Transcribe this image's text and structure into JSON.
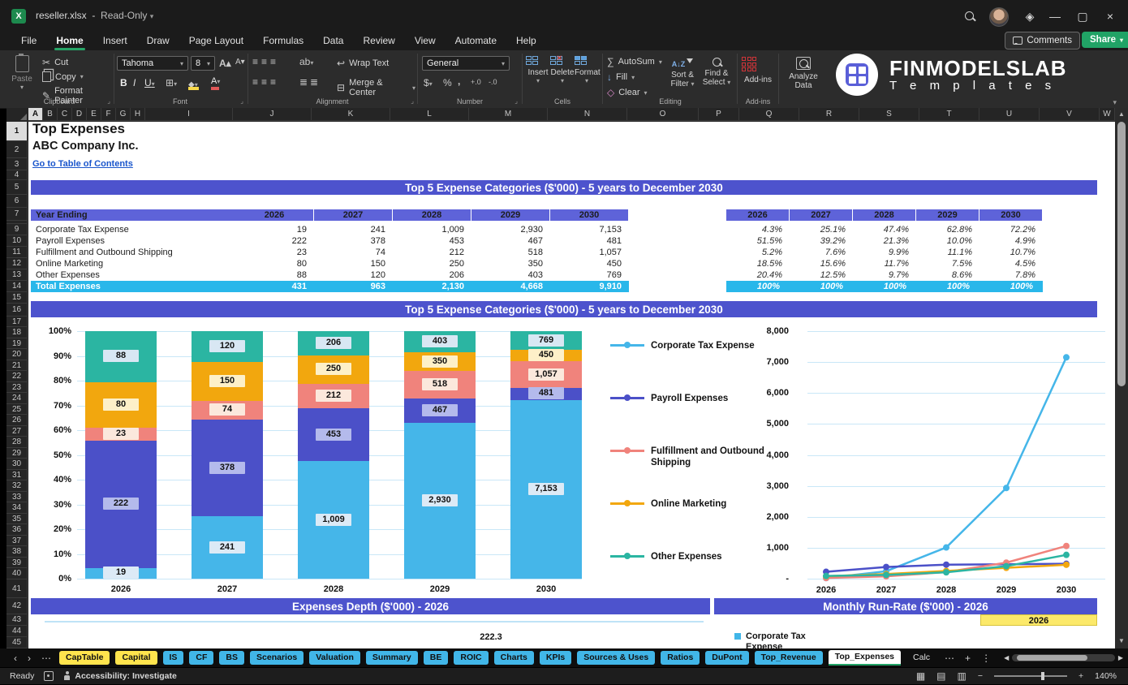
{
  "window": {
    "filename": "reseller.xlsx",
    "mode": "Read-Only",
    "comments_label": "Comments",
    "share_label": "Share"
  },
  "menu": {
    "items": [
      "File",
      "Home",
      "Insert",
      "Draw",
      "Page Layout",
      "Formulas",
      "Data",
      "Review",
      "View",
      "Automate",
      "Help"
    ],
    "active": "Home"
  },
  "ribbon": {
    "paste": "Paste",
    "cut": "Cut",
    "copy": "Copy",
    "format_painter": "Format Painter",
    "font_name": "Tahoma",
    "font_size": "8",
    "wrap_text": "Wrap Text",
    "merge_center": "Merge & Center",
    "number_format": "General",
    "insert": "Insert",
    "delete": "Delete",
    "format": "Format",
    "autosum": "AutoSum",
    "fill": "Fill",
    "clear": "Clear",
    "sort_filter_1": "Sort &",
    "sort_filter_2": "Filter",
    "find_select_1": "Find &",
    "find_select_2": "Select",
    "addins": "Add-ins",
    "analyze_1": "Analyze",
    "analyze_2": "Data",
    "groups": [
      "Clipboard",
      "Font",
      "Alignment",
      "Number",
      "Cells",
      "Editing",
      "Add-ins"
    ]
  },
  "brand": {
    "name": "FINMODELSLAB",
    "sub": "T e m p l a t e s"
  },
  "grid": {
    "columns": [
      "A",
      "B",
      "C",
      "D",
      "E",
      "F",
      "G",
      "H",
      "I",
      "J",
      "K",
      "L",
      "M",
      "N",
      "O",
      "P",
      "Q",
      "R",
      "S",
      "T",
      "U",
      "V",
      "W"
    ],
    "rows": [
      1,
      2,
      3,
      4,
      5,
      6,
      7,
      8,
      9,
      10,
      11,
      12,
      13,
      14,
      15,
      16,
      17,
      18,
      19,
      20,
      21,
      22,
      23,
      24,
      25,
      26,
      27,
      28,
      29,
      30,
      31,
      32,
      33,
      34,
      35,
      36,
      37,
      38,
      39,
      40,
      41,
      42,
      43,
      44,
      45
    ]
  },
  "sheet": {
    "title": "Top Expenses",
    "company": "ABC Company Inc.",
    "toc_link": "Go to Table of Contents",
    "banner1": "Top 5 Expense Categories ($'000) - 5 years to December 2030",
    "banner2": "Top 5 Expense Categories ($'000) - 5 years to December 2030",
    "banner3": "Expenses Depth ($'000) - 2026",
    "banner4": "Monthly Run-Rate ($'000) - 2026",
    "table": {
      "header": "Year Ending",
      "years": [
        "2026",
        "2027",
        "2028",
        "2029",
        "2030"
      ],
      "rows": [
        {
          "label": "Corporate Tax Expense",
          "values": [
            "19",
            "241",
            "1,009",
            "2,930",
            "7,153"
          ],
          "pcts": [
            "4.3%",
            "25.1%",
            "47.4%",
            "62.8%",
            "72.2%"
          ]
        },
        {
          "label": "Payroll Expenses",
          "values": [
            "222",
            "378",
            "453",
            "467",
            "481"
          ],
          "pcts": [
            "51.5%",
            "39.2%",
            "21.3%",
            "10.0%",
            "4.9%"
          ]
        },
        {
          "label": "Fulfillment and Outbound Shipping",
          "values": [
            "23",
            "74",
            "212",
            "518",
            "1,057"
          ],
          "pcts": [
            "5.2%",
            "7.6%",
            "9.9%",
            "11.1%",
            "10.7%"
          ]
        },
        {
          "label": "Online Marketing",
          "values": [
            "80",
            "150",
            "250",
            "350",
            "450"
          ],
          "pcts": [
            "18.5%",
            "15.6%",
            "11.7%",
            "7.5%",
            "4.5%"
          ]
        },
        {
          "label": "Other Expenses",
          "values": [
            "88",
            "120",
            "206",
            "403",
            "769"
          ],
          "pcts": [
            "20.4%",
            "12.5%",
            "9.7%",
            "8.6%",
            "7.8%"
          ]
        }
      ],
      "total": {
        "label": "Total Expenses",
        "values": [
          "431",
          "963",
          "2,130",
          "4,668",
          "9,910"
        ],
        "pcts": [
          "100%",
          "100%",
          "100%",
          "100%",
          "100%"
        ]
      }
    },
    "depth_visible_label": "222.3",
    "runrate_year_cell": "2026",
    "runrate_legend": "Corporate Tax Expense"
  },
  "chart_data": [
    {
      "type": "bar",
      "subtype": "stacked-100",
      "title": "Top 5 Expense Categories ($'000) - 5 years to December 2030",
      "categories": [
        "2026",
        "2027",
        "2028",
        "2029",
        "2030"
      ],
      "y_ticks": [
        "100%",
        "90%",
        "80%",
        "70%",
        "60%",
        "50%",
        "40%",
        "30%",
        "20%",
        "10%",
        "0%"
      ],
      "series": [
        {
          "name": "Corporate Tax Expense",
          "color": "#45b6e9",
          "label_bg": "#dceaf6",
          "values": [
            19,
            241,
            1009,
            2930,
            7153
          ],
          "pcts": [
            4.3,
            25.1,
            47.4,
            62.8,
            72.2
          ],
          "labels": [
            "19",
            "241",
            "1,009",
            "2,930",
            "7,153"
          ]
        },
        {
          "name": "Payroll Expenses",
          "color": "#4b50c8",
          "label_bg": "#b4baec",
          "values": [
            222,
            378,
            453,
            467,
            481
          ],
          "pcts": [
            51.5,
            39.2,
            21.3,
            10.0,
            4.9
          ],
          "labels": [
            "222",
            "378",
            "453",
            "467",
            "481"
          ]
        },
        {
          "name": "Fulfillment and Outbound Shipping",
          "color": "#f0837c",
          "label_bg": "#fbe8dc",
          "values": [
            23,
            74,
            212,
            518,
            1057
          ],
          "pcts": [
            5.2,
            7.6,
            9.9,
            11.1,
            10.7
          ],
          "labels": [
            "23",
            "74",
            "212",
            "518",
            "1,057"
          ]
        },
        {
          "name": "Online Marketing",
          "color": "#f2a70e",
          "label_bg": "#fdf0c8",
          "values": [
            80,
            150,
            250,
            350,
            450
          ],
          "pcts": [
            18.5,
            15.6,
            11.7,
            7.5,
            4.5
          ],
          "labels": [
            "80",
            "150",
            "250",
            "350",
            "450"
          ]
        },
        {
          "name": "Other Expenses",
          "color": "#2bb5a2",
          "label_bg": "#d8e7f3",
          "values": [
            88,
            120,
            206,
            403,
            769
          ],
          "pcts": [
            20.4,
            12.5,
            9.7,
            8.6,
            7.8
          ],
          "labels": [
            "88",
            "120",
            "206",
            "403",
            "769"
          ]
        }
      ]
    },
    {
      "type": "line",
      "categories": [
        "2026",
        "2027",
        "2028",
        "2029",
        "2030"
      ],
      "ymax": 8000,
      "y_ticks": [
        "8,000",
        "7,000",
        "6,000",
        "5,000",
        "4,000",
        "3,000",
        "2,000",
        "1,000",
        "-"
      ],
      "legend_position": "left",
      "series": [
        {
          "name": "Corporate Tax Expense",
          "color": "#45b6e9",
          "values": [
            19,
            241,
            1009,
            2930,
            7153
          ]
        },
        {
          "name": "Payroll Expenses",
          "color": "#4b50c8",
          "values": [
            222,
            378,
            453,
            467,
            481
          ]
        },
        {
          "name": "Fulfillment and Outbound Shipping",
          "color": "#f0837c",
          "values": [
            23,
            74,
            212,
            518,
            1057
          ]
        },
        {
          "name": "Online Marketing",
          "color": "#f2a70e",
          "values": [
            80,
            150,
            250,
            350,
            450
          ]
        },
        {
          "name": "Other Expenses",
          "color": "#2bb5a2",
          "values": [
            88,
            120,
            206,
            403,
            769
          ]
        }
      ]
    },
    {
      "type": "bar",
      "title": "Expenses Depth ($'000) - 2026",
      "note": "partially visible below fold",
      "visible_labels": [
        "222.3"
      ],
      "legend": [
        "Corporate Tax Expense"
      ]
    },
    {
      "type": "table",
      "title": "Monthly Run-Rate ($'000) - 2026",
      "note": "partially visible below fold",
      "visible_labels": [
        "2026"
      ]
    }
  ],
  "tabs": {
    "items": [
      {
        "label": "CapTable",
        "style": "yellow"
      },
      {
        "label": "Capital",
        "style": "yellow"
      },
      {
        "label": "IS",
        "style": "blue"
      },
      {
        "label": "CF",
        "style": "blue"
      },
      {
        "label": "BS",
        "style": "blue"
      },
      {
        "label": "Scenarios",
        "style": "blue"
      },
      {
        "label": "Valuation",
        "style": "blue"
      },
      {
        "label": "Summary",
        "style": "blue"
      },
      {
        "label": "BE",
        "style": "blue"
      },
      {
        "label": "ROIC",
        "style": "blue"
      },
      {
        "label": "Charts",
        "style": "blue"
      },
      {
        "label": "KPIs",
        "style": "blue"
      },
      {
        "label": "Sources & Uses",
        "style": "blue"
      },
      {
        "label": "Ratios",
        "style": "blue"
      },
      {
        "label": "DuPont",
        "style": "blue"
      },
      {
        "label": "Top_Revenue",
        "style": "blue"
      },
      {
        "label": "Top_Expenses",
        "style": "active"
      },
      {
        "label": "Calc",
        "style": "plain"
      }
    ]
  },
  "statusbar": {
    "ready": "Ready",
    "accessibility": "Accessibility: Investigate",
    "zoom": "140%"
  }
}
